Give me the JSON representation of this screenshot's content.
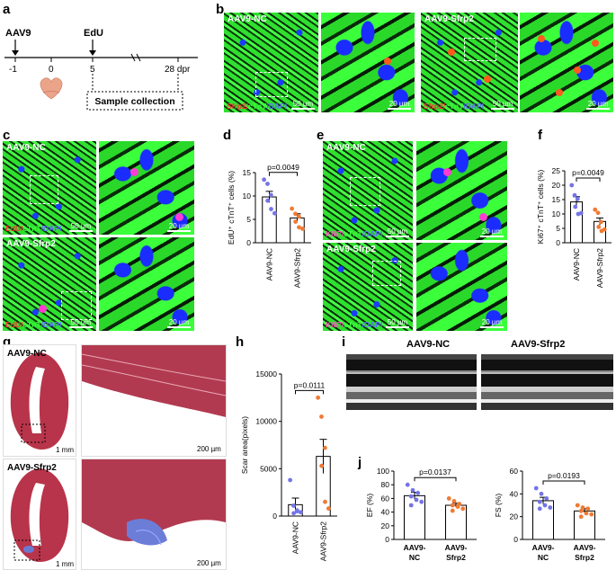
{
  "panels": {
    "a": {
      "label": "a",
      "aav9": "AAV9",
      "edu": "EdU",
      "ticks": [
        "-1",
        "0",
        "5",
        "28 dpr"
      ],
      "sample": "Sample collection"
    },
    "b": {
      "label": "b",
      "left_cond": "AAV9-NC",
      "right_cond": "AAV9-Sfrp2",
      "stain": [
        {
          "text": "Sfrp2/",
          "color": "red"
        },
        {
          "text": "cTnT",
          "color": "green"
        },
        {
          "text": "/DAPI",
          "color": "blue"
        }
      ],
      "scale_big": "50 µm",
      "scale_small": "20 µm"
    },
    "c": {
      "label": "c",
      "top_cond": "AAV9-NC",
      "bottom_cond": "AAV9-Sfrp2",
      "stain": [
        {
          "text": "EdU/",
          "color": "red"
        },
        {
          "text": "cTnT",
          "color": "green"
        },
        {
          "text": "/DAPI",
          "color": "blue"
        }
      ],
      "scale_big": "50 µm",
      "scale_small": "20 µm"
    },
    "d": {
      "label": "d"
    },
    "e": {
      "label": "e",
      "top_cond": "AAV9-NC",
      "bottom_cond": "AAV9-Sfrp2",
      "stain": [
        {
          "text": "Ki67/",
          "color": "red"
        },
        {
          "text": "cTnT",
          "color": "green"
        },
        {
          "text": "/DAPI",
          "color": "blue"
        }
      ],
      "scale_big": "50 µm",
      "scale_small": "20 µm"
    },
    "f": {
      "label": "f"
    },
    "g": {
      "label": "g",
      "top_cond": "AAV9-NC",
      "bottom_cond": "AAV9-Sfrp2",
      "scale_big": "1 mm",
      "scale_small": "200 µm"
    },
    "h": {
      "label": "h"
    },
    "i": {
      "label": "i",
      "left_cond": "AAV9-NC",
      "right_cond": "AAV9-Sfrp2"
    },
    "j": {
      "label": "j"
    }
  },
  "chart_data": [
    {
      "id": "d",
      "type": "bar",
      "categories": [
        "AAV9-NC",
        "AAV9-Sfrp2"
      ],
      "values": [
        9.8,
        5.3
      ],
      "errors": [
        1.2,
        0.9
      ],
      "points": [
        [
          13.5,
          12.6,
          10.2,
          9.0,
          7.2,
          6.3
        ],
        [
          7.3,
          6.2,
          5.6,
          4.5,
          3.3,
          3.0
        ]
      ],
      "ylabel": "EdU⁺ cTnT⁺ cells (%)",
      "ylim": [
        0,
        15
      ],
      "yticks": [
        0,
        5,
        10,
        15
      ],
      "pvalue": "p=0.0049",
      "colors": [
        "#7474e8",
        "#f07a34"
      ]
    },
    {
      "id": "f",
      "type": "bar",
      "categories": [
        "AAV9-NC",
        "AAV9-Sfrp2"
      ],
      "values": [
        14.2,
        7.4
      ],
      "errors": [
        1.8,
        1.2
      ],
      "points": [
        [
          20.0,
          16.5,
          15.2,
          12.5,
          10.0,
          10.3
        ],
        [
          11.5,
          10.4,
          7.2,
          5.5,
          4.1,
          4.6
        ]
      ],
      "ylabel": "Ki67⁺ cTnT⁺ cells (%)",
      "ylim": [
        0,
        25
      ],
      "yticks": [
        0,
        5,
        10,
        15,
        20,
        25
      ],
      "pvalue": "p=0.0049",
      "colors": [
        "#7474e8",
        "#f07a34"
      ]
    },
    {
      "id": "h",
      "type": "bar",
      "categories": [
        "AAV9-NC",
        "AAV9-Sfrp2"
      ],
      "values": [
        1200,
        6300
      ],
      "errors": [
        700,
        1800
      ],
      "points": [
        [
          3800,
          1100,
          600,
          300,
          500,
          400
        ],
        [
          12500,
          10500,
          7200,
          5300,
          1500,
          800
        ]
      ],
      "ylabel": "Scar area(pixels)",
      "ylim": [
        0,
        15000
      ],
      "yticks": [
        0,
        5000,
        10000,
        15000
      ],
      "pvalue": "p=0.0111",
      "colors": [
        "#7474e8",
        "#f07a34"
      ]
    },
    {
      "id": "j-ef",
      "type": "bar",
      "categories": [
        "AAV9-\nNC",
        "AAV9-\nSfrp2"
      ],
      "values": [
        64,
        50
      ],
      "errors": [
        5,
        3
      ],
      "points": [
        [
          80,
          72,
          68,
          63,
          58,
          55,
          50
        ],
        [
          60,
          56,
          52,
          50,
          48,
          45,
          42
        ]
      ],
      "ylabel": "EF (%)",
      "ylim": [
        0,
        100
      ],
      "yticks": [
        0,
        20,
        40,
        60,
        80,
        100
      ],
      "pvalue": "p=0.0137",
      "colors": [
        "#7474e8",
        "#f07a34"
      ]
    },
    {
      "id": "j-fs",
      "type": "bar",
      "categories": [
        "AAV9-\nNC",
        "AAV9-\nSfrp2"
      ],
      "values": [
        34,
        25
      ],
      "errors": [
        3,
        2
      ],
      "points": [
        [
          45,
          40,
          36,
          33,
          30,
          28,
          27
        ],
        [
          30,
          28,
          27,
          25,
          23,
          22,
          20
        ]
      ],
      "ylabel": "FS (%)",
      "ylim": [
        0,
        60
      ],
      "yticks": [
        0,
        20,
        40,
        60
      ],
      "pvalue": "p=0.0193",
      "colors": [
        "#7474e8",
        "#f07a34"
      ]
    }
  ]
}
